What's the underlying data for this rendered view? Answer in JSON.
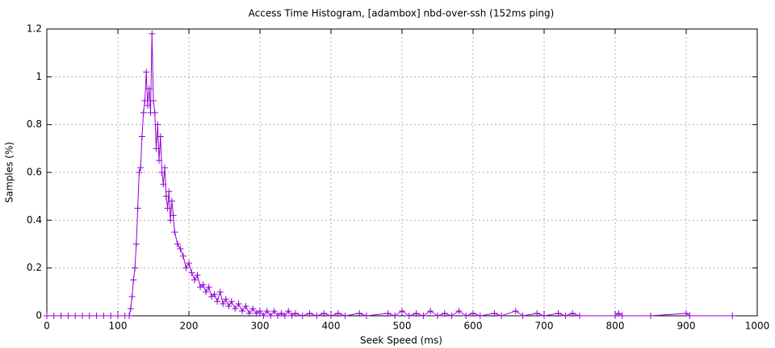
{
  "chart_data": {
    "type": "line",
    "title": "Access Time Histogram, [adambox] nbd-over-ssh (152ms ping)",
    "x_label": "Seek Speed (ms)",
    "y_label": "Samples (%)",
    "color": "#9400d3",
    "grid": true,
    "marker": "+",
    "xlim": [
      0,
      1000
    ],
    "xticks": [
      0,
      100,
      200,
      300,
      400,
      500,
      600,
      700,
      800,
      900,
      1000
    ],
    "ylim": [
      0,
      1.2
    ],
    "yticks": [
      0,
      0.2,
      0.4,
      0.6,
      0.8,
      1,
      1.2
    ],
    "x": [
      0,
      10,
      20,
      30,
      40,
      50,
      60,
      70,
      80,
      90,
      100,
      110,
      116,
      118,
      120,
      122,
      124,
      126,
      128,
      130,
      132,
      134,
      136,
      138,
      140,
      142,
      144,
      146,
      148,
      150,
      152,
      154,
      156,
      158,
      160,
      162,
      164,
      166,
      168,
      170,
      172,
      174,
      176,
      178,
      180,
      184,
      188,
      192,
      196,
      200,
      204,
      208,
      212,
      216,
      220,
      224,
      228,
      232,
      236,
      240,
      244,
      248,
      252,
      256,
      260,
      265,
      270,
      275,
      280,
      285,
      290,
      295,
      300,
      305,
      310,
      315,
      320,
      325,
      330,
      335,
      340,
      345,
      350,
      360,
      370,
      380,
      390,
      400,
      410,
      420,
      440,
      450,
      480,
      490,
      500,
      510,
      520,
      530,
      540,
      550,
      560,
      570,
      580,
      590,
      600,
      610,
      630,
      640,
      660,
      670,
      690,
      700,
      720,
      730,
      740,
      750,
      800,
      805,
      810,
      850,
      900,
      905,
      965
    ],
    "values": [
      0,
      0,
      0,
      0,
      0,
      0,
      0,
      0,
      0,
      0,
      0,
      0,
      0,
      0.03,
      0.08,
      0.15,
      0.2,
      0.3,
      0.45,
      0.6,
      0.62,
      0.75,
      0.85,
      0.9,
      1.02,
      0.88,
      0.95,
      0.85,
      1.18,
      0.9,
      0.85,
      0.7,
      0.8,
      0.65,
      0.75,
      0.6,
      0.55,
      0.62,
      0.5,
      0.45,
      0.52,
      0.4,
      0.48,
      0.42,
      0.35,
      0.3,
      0.28,
      0.25,
      0.2,
      0.22,
      0.18,
      0.15,
      0.17,
      0.12,
      0.13,
      0.1,
      0.12,
      0.08,
      0.09,
      0.06,
      0.1,
      0.05,
      0.07,
      0.04,
      0.06,
      0.03,
      0.05,
      0.02,
      0.04,
      0.01,
      0.03,
      0.01,
      0.02,
      0,
      0.02,
      0,
      0.02,
      0,
      0.01,
      0,
      0.02,
      0,
      0.01,
      0,
      0.01,
      0,
      0.01,
      0,
      0.01,
      0,
      0.01,
      0,
      0.01,
      0,
      0.02,
      0,
      0.01,
      0,
      0.02,
      0,
      0.01,
      0,
      0.02,
      0,
      0.01,
      0,
      0.01,
      0,
      0.02,
      0,
      0.01,
      0,
      0.01,
      0,
      0.01,
      0,
      0,
      0.01,
      0,
      0,
      0.01,
      0,
      0
    ]
  }
}
